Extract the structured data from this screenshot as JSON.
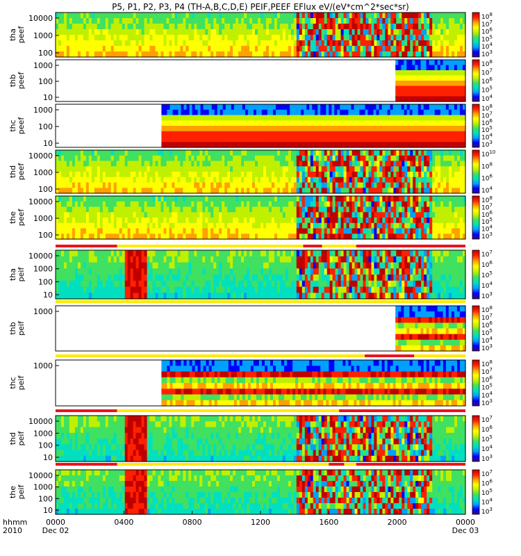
{
  "chart_data": {
    "type": "heatmap",
    "title": "P5, P1, P2, P3, P4 (TH-A,B,C,D,E) PEIF,PEEF EFlux eV/(eV*cm^2*sec*sr)",
    "x_axis": {
      "row_label_top": "hhmm",
      "row_label_bottom": "2010",
      "ticks": [
        {
          "hhmm": "0000",
          "date": "Dec 02"
        },
        {
          "hhmm": "0400",
          "date": ""
        },
        {
          "hhmm": "0800",
          "date": ""
        },
        {
          "hhmm": "1200",
          "date": ""
        },
        {
          "hhmm": "1600",
          "date": ""
        },
        {
          "hhmm": "2000",
          "date": ""
        },
        {
          "hhmm": "0000",
          "date": "Dec 03"
        }
      ],
      "range_hours": [
        0,
        24
      ]
    },
    "panels": [
      {
        "name": "tha peef",
        "y_label": [
          "tha",
          "peef"
        ],
        "y_ticks": [
          "10000",
          "1000",
          "100"
        ],
        "y_log": true,
        "colorbar_exponents": [
          "8",
          "7",
          "6",
          "5",
          "4",
          "3"
        ],
        "data_start_hour": 0,
        "data_end_hour": 24
      },
      {
        "name": "thb peef",
        "y_label": [
          "thb",
          "peef"
        ],
        "y_ticks": [
          "1000",
          "100",
          "10"
        ],
        "y_log": true,
        "colorbar_exponents": [
          "8",
          "7",
          "6",
          "5",
          "4"
        ],
        "data_start_hour": 19.9,
        "data_end_hour": 24
      },
      {
        "name": "thc peef",
        "y_label": [
          "thc",
          "peef"
        ],
        "y_ticks": [
          "1000",
          "100",
          "10"
        ],
        "y_log": true,
        "colorbar_exponents": [
          "8",
          "7",
          "6",
          "5",
          "4",
          "3"
        ],
        "data_start_hour": 6.2,
        "data_end_hour": 24
      },
      {
        "name": "thd peef",
        "y_label": [
          "thd",
          "peef"
        ],
        "y_ticks": [
          "10000",
          "1000",
          "100"
        ],
        "y_log": true,
        "colorbar_exponents": [
          "10",
          "8",
          "6",
          "4"
        ],
        "data_start_hour": 0,
        "data_end_hour": 24
      },
      {
        "name": "the peef",
        "y_label": [
          "the",
          "peef"
        ],
        "y_ticks": [
          "10000",
          "1000",
          "100"
        ],
        "y_log": true,
        "colorbar_exponents": [
          "8",
          "7",
          "6",
          "5",
          "4",
          "3"
        ],
        "data_start_hour": 0,
        "data_end_hour": 24
      },
      {
        "name": "tha peif",
        "y_label": [
          "tha",
          "peif"
        ],
        "y_ticks": [
          "10000",
          "1000",
          "100",
          "10"
        ],
        "y_log": true,
        "colorbar_exponents": [
          "7",
          "6",
          "5",
          "4",
          "3"
        ],
        "data_start_hour": 0,
        "data_end_hour": 24
      },
      {
        "name": "thb peif",
        "y_label": [
          "thb",
          "peif"
        ],
        "y_ticks": [
          "1000"
        ],
        "y_log": true,
        "colorbar_exponents": [
          "8",
          "7",
          "6",
          "5",
          "4",
          "3"
        ],
        "data_start_hour": 19.9,
        "data_end_hour": 24
      },
      {
        "name": "thc peif",
        "y_label": [
          "thc",
          "peif"
        ],
        "y_ticks": [
          "1000"
        ],
        "y_log": true,
        "colorbar_exponents": [
          "8",
          "7",
          "6",
          "5",
          "4",
          "3"
        ],
        "data_start_hour": 6.2,
        "data_end_hour": 24
      },
      {
        "name": "thd peif",
        "y_label": [
          "thd",
          "peif"
        ],
        "y_ticks": [
          "10000",
          "1000",
          "100",
          "10"
        ],
        "y_log": true,
        "colorbar_exponents": [
          "7",
          "6",
          "5",
          "4",
          "3"
        ],
        "data_start_hour": 0,
        "data_end_hour": 24
      },
      {
        "name": "the peif",
        "y_label": [
          "the",
          "peif"
        ],
        "y_ticks": [
          "10000",
          "1000",
          "100",
          "10"
        ],
        "y_log": true,
        "colorbar_exponents": [
          "7",
          "6",
          "5",
          "4",
          "3"
        ],
        "data_start_hour": 0,
        "data_end_hour": 24
      }
    ],
    "mode_bars": [
      {
        "after_panel": "the peef",
        "segments": [
          [
            "red",
            0,
            3.6
          ],
          [
            "yellow",
            3.6,
            14.5
          ],
          [
            "red",
            14.5,
            15.6
          ],
          [
            "yellow",
            15.6,
            17.6
          ],
          [
            "red",
            17.6,
            24
          ]
        ]
      },
      {
        "after_panel": "tha peif",
        "segments": [
          [
            "yellow",
            0,
            24
          ]
        ]
      },
      {
        "after_panel": "thb peif",
        "segments": [
          [
            "yellow",
            0,
            18.1
          ],
          [
            "red",
            18.1,
            21
          ],
          [
            "yellow",
            21,
            24
          ]
        ]
      },
      {
        "after_panel": "thc peif",
        "segments": [
          [
            "red",
            0,
            3.6
          ],
          [
            "yellow",
            3.6,
            16.6
          ],
          [
            "red",
            16.6,
            24
          ]
        ]
      },
      {
        "after_panel": "thd peif",
        "segments": [
          [
            "red",
            0,
            3.6
          ],
          [
            "yellow",
            3.6,
            16
          ],
          [
            "red",
            16,
            16.9
          ],
          [
            "yellow",
            16.9,
            17.6
          ],
          [
            "red",
            17.6,
            24
          ]
        ]
      }
    ],
    "colors": {
      "white_gap": "#ffffff",
      "mode_red": "#e8141b",
      "mode_yellow": "#ffea00",
      "colorscale": [
        "#3a0a7a",
        "#0000ff",
        "#00a0ff",
        "#00e0c0",
        "#40e060",
        "#c0f000",
        "#ffff00",
        "#ffa000",
        "#ff2000",
        "#c00000"
      ]
    }
  }
}
